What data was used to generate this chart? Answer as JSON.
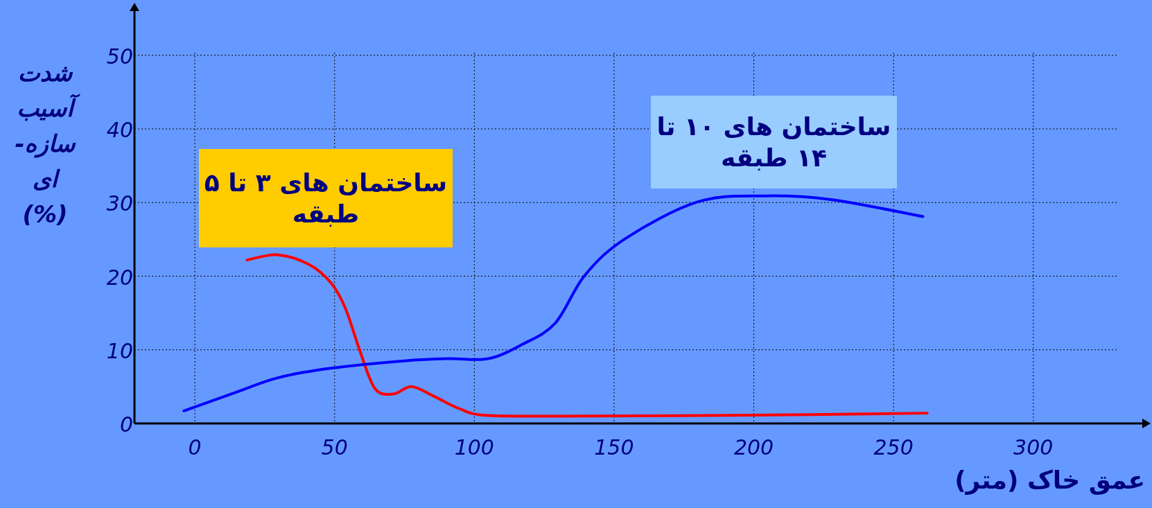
{
  "chart_data": {
    "type": "line",
    "xlabel": "عمق خاک (متر)",
    "ylabel": "شدت آسیب سازه-ای (%)",
    "xlim": [
      -21.6,
      339
    ],
    "ylim": [
      0,
      56
    ],
    "xticks": [
      0,
      50,
      100,
      150,
      200,
      250,
      300
    ],
    "yticks": [
      0,
      10,
      20,
      30,
      40,
      50
    ],
    "grid": true,
    "marker": "none",
    "line_style": "solid",
    "series": [
      {
        "name": "ساختمان های ۳ تا ۵ طبقه",
        "color": "#ff0000",
        "x": [
          18.7,
          29.7,
          40.8,
          48.7,
          53.9,
          59.2,
          64.5,
          71,
          77.6,
          85.5,
          94.7,
          103.9,
          130,
          193,
          262
        ],
        "values": [
          22.2,
          22.9,
          21.6,
          19.1,
          15.6,
          9.7,
          4.7,
          4.0,
          5.0,
          3.7,
          2.0,
          1.1,
          1.0,
          1.1,
          1.4
        ]
      },
      {
        "name": "ساختمان های ۱۰ تا ۱۴ طبقه",
        "color": "#0000ff",
        "x": [
          -3.9,
          14.5,
          29.7,
          48.7,
          75,
          90.8,
          105,
          117,
          128.9,
          139.5,
          154,
          180,
          204,
          227.6,
          260.5
        ],
        "values": [
          1.7,
          4.2,
          6.2,
          7.5,
          8.5,
          8.8,
          8.8,
          10.7,
          13.6,
          20.1,
          25.1,
          30.1,
          30.9,
          30.4,
          28.1
        ]
      }
    ]
  }
}
